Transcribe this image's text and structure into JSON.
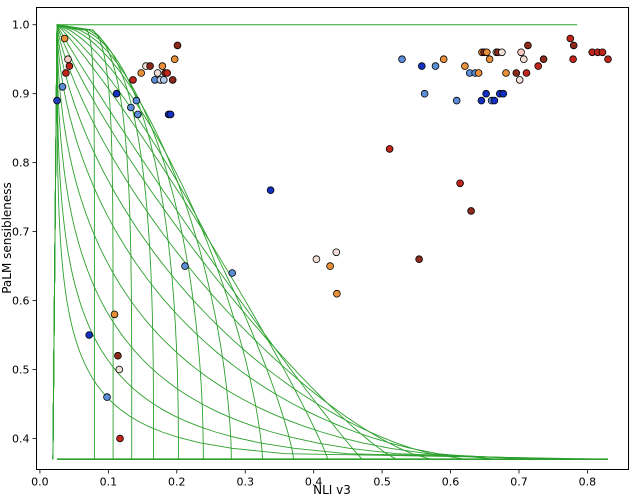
{
  "chart_data": {
    "type": "scatter",
    "title": "",
    "xlabel": "NLI v3",
    "ylabel": "PaLM sensibleness",
    "xlim": [
      -0.005,
      0.86
    ],
    "ylim": [
      0.355,
      1.025
    ],
    "xticks": [
      "0.0",
      "0.1",
      "0.2",
      "0.3",
      "0.4",
      "0.5",
      "0.6",
      "0.7",
      "0.8"
    ],
    "xtick_values": [
      0.0,
      0.1,
      0.2,
      0.3,
      0.4,
      0.5,
      0.6,
      0.7,
      0.8
    ],
    "yticks": [
      "0.4",
      "0.5",
      "0.6",
      "0.7",
      "0.8",
      "0.9",
      "1.0"
    ],
    "ytick_values": [
      0.4,
      0.5,
      0.6,
      0.7,
      0.8,
      0.9,
      1.0
    ],
    "grid": false,
    "legend": "none",
    "frontier_color": "#2ca02c",
    "frontier": {
      "x_min": 0.025,
      "x_max": 0.83,
      "y_min": 0.37,
      "y_max": 1.0,
      "exponents": [
        10,
        6,
        4,
        3,
        2.4,
        2.0,
        1.7,
        1.45,
        1.25,
        1.1,
        0.95,
        0.85,
        0.75,
        0.66,
        0.58,
        0.5,
        0.43,
        0.37,
        0.32
      ],
      "x_scale": [
        1.0,
        1.0,
        1.0,
        1.0,
        1.0,
        1.0,
        1.0,
        1.0,
        1.0,
        1.0,
        1.0,
        1.0,
        1.0,
        1.0,
        1.0,
        1.0,
        1.0,
        1.0,
        1.0
      ],
      "note_levels": [
        0.06,
        0.09,
        0.12,
        0.155,
        0.195,
        0.235,
        0.28,
        0.33,
        0.38,
        0.435,
        0.49,
        0.545,
        0.6,
        0.655,
        0.705,
        0.755,
        0.8,
        0.845,
        0.885
      ]
    },
    "points": [
      {
        "x": 0.025,
        "y": 0.89,
        "color": "#1f3fbf"
      },
      {
        "x": 0.033,
        "y": 0.91,
        "color": "#5b8ed6"
      },
      {
        "x": 0.036,
        "y": 0.98,
        "color": "#e8903a"
      },
      {
        "x": 0.038,
        "y": 0.93,
        "color": "#c0251b"
      },
      {
        "x": 0.041,
        "y": 0.95,
        "color": "#f6c9c0"
      },
      {
        "x": 0.043,
        "y": 0.94,
        "color": "#c0251b"
      },
      {
        "x": 0.072,
        "y": 0.55,
        "color": "#1330c0"
      },
      {
        "x": 0.098,
        "y": 0.46,
        "color": "#5b8ed6"
      },
      {
        "x": 0.109,
        "y": 0.58,
        "color": "#e8903a"
      },
      {
        "x": 0.112,
        "y": 0.9,
        "color": "#1330c0"
      },
      {
        "x": 0.114,
        "y": 0.52,
        "color": "#8b2a1a"
      },
      {
        "x": 0.116,
        "y": 0.5,
        "color": "#f2e0d8"
      },
      {
        "x": 0.117,
        "y": 0.4,
        "color": "#c0251b"
      },
      {
        "x": 0.133,
        "y": 0.88,
        "color": "#5b8ed6"
      },
      {
        "x": 0.136,
        "y": 0.92,
        "color": "#c0251b"
      },
      {
        "x": 0.141,
        "y": 0.89,
        "color": "#5b8ed6"
      },
      {
        "x": 0.143,
        "y": 0.87,
        "color": "#5b8ed6"
      },
      {
        "x": 0.148,
        "y": 0.93,
        "color": "#e8903a"
      },
      {
        "x": 0.155,
        "y": 0.94,
        "color": "#f2e0d8"
      },
      {
        "x": 0.161,
        "y": 0.94,
        "color": "#8b2a1a"
      },
      {
        "x": 0.168,
        "y": 0.92,
        "color": "#5b8ed6"
      },
      {
        "x": 0.172,
        "y": 0.93,
        "color": "#f2e0d8"
      },
      {
        "x": 0.176,
        "y": 0.92,
        "color": "#c8d8ee"
      },
      {
        "x": 0.179,
        "y": 0.94,
        "color": "#e8903a"
      },
      {
        "x": 0.181,
        "y": 0.92,
        "color": "#b2cbe8"
      },
      {
        "x": 0.183,
        "y": 0.93,
        "color": "#8b2a1a"
      },
      {
        "x": 0.186,
        "y": 0.93,
        "color": "#c0251b"
      },
      {
        "x": 0.188,
        "y": 0.87,
        "color": "#1330c0"
      },
      {
        "x": 0.191,
        "y": 0.87,
        "color": "#1330c0"
      },
      {
        "x": 0.194,
        "y": 0.92,
        "color": "#8b2a1a"
      },
      {
        "x": 0.197,
        "y": 0.95,
        "color": "#e8903a"
      },
      {
        "x": 0.201,
        "y": 0.97,
        "color": "#8b2a1a"
      },
      {
        "x": 0.212,
        "y": 0.65,
        "color": "#5b8ed6"
      },
      {
        "x": 0.281,
        "y": 0.64,
        "color": "#5b8ed6"
      },
      {
        "x": 0.337,
        "y": 0.76,
        "color": "#1330c0"
      },
      {
        "x": 0.404,
        "y": 0.66,
        "color": "#f2e0d8"
      },
      {
        "x": 0.424,
        "y": 0.65,
        "color": "#e8903a"
      },
      {
        "x": 0.433,
        "y": 0.67,
        "color": "#f2e0d8"
      },
      {
        "x": 0.434,
        "y": 0.61,
        "color": "#e8903a"
      },
      {
        "x": 0.511,
        "y": 0.82,
        "color": "#c0251b"
      },
      {
        "x": 0.529,
        "y": 0.95,
        "color": "#5b8ed6"
      },
      {
        "x": 0.554,
        "y": 0.66,
        "color": "#8b2a1a"
      },
      {
        "x": 0.562,
        "y": 0.9,
        "color": "#5b8ed6"
      },
      {
        "x": 0.558,
        "y": 0.94,
        "color": "#1330c0"
      },
      {
        "x": 0.578,
        "y": 0.94,
        "color": "#5b8ed6"
      },
      {
        "x": 0.59,
        "y": 0.95,
        "color": "#e8903a"
      },
      {
        "x": 0.609,
        "y": 0.89,
        "color": "#5b8ed6"
      },
      {
        "x": 0.614,
        "y": 0.77,
        "color": "#c0251b"
      },
      {
        "x": 0.621,
        "y": 0.94,
        "color": "#e8903a"
      },
      {
        "x": 0.628,
        "y": 0.93,
        "color": "#5b8ed6"
      },
      {
        "x": 0.63,
        "y": 0.73,
        "color": "#8b2a1a"
      },
      {
        "x": 0.636,
        "y": 0.93,
        "color": "#5b8ed6"
      },
      {
        "x": 0.641,
        "y": 0.93,
        "color": "#e8903a"
      },
      {
        "x": 0.645,
        "y": 0.89,
        "color": "#1330c0"
      },
      {
        "x": 0.646,
        "y": 0.96,
        "color": "#e8903a"
      },
      {
        "x": 0.649,
        "y": 0.96,
        "color": "#8b2a1a"
      },
      {
        "x": 0.652,
        "y": 0.9,
        "color": "#1330c0"
      },
      {
        "x": 0.653,
        "y": 0.96,
        "color": "#e8903a"
      },
      {
        "x": 0.657,
        "y": 0.95,
        "color": "#e8903a"
      },
      {
        "x": 0.66,
        "y": 0.89,
        "color": "#5b8ed6"
      },
      {
        "x": 0.664,
        "y": 0.89,
        "color": "#1330c0"
      },
      {
        "x": 0.667,
        "y": 0.96,
        "color": "#f2e0d8"
      },
      {
        "x": 0.669,
        "y": 0.96,
        "color": "#8b2a1a"
      },
      {
        "x": 0.672,
        "y": 0.9,
        "color": "#1330c0"
      },
      {
        "x": 0.675,
        "y": 0.96,
        "color": "#f2e0d8"
      },
      {
        "x": 0.677,
        "y": 0.9,
        "color": "#1330c0"
      },
      {
        "x": 0.681,
        "y": 0.93,
        "color": "#e8903a"
      },
      {
        "x": 0.696,
        "y": 0.93,
        "color": "#8b2a1a"
      },
      {
        "x": 0.701,
        "y": 0.92,
        "color": "#f2e0d8"
      },
      {
        "x": 0.703,
        "y": 0.96,
        "color": "#f6c9c0"
      },
      {
        "x": 0.707,
        "y": 0.95,
        "color": "#f2e0d8"
      },
      {
        "x": 0.711,
        "y": 0.93,
        "color": "#c0251b"
      },
      {
        "x": 0.713,
        "y": 0.97,
        "color": "#8b2a1a"
      },
      {
        "x": 0.728,
        "y": 0.94,
        "color": "#c0251b"
      },
      {
        "x": 0.736,
        "y": 0.95,
        "color": "#8b2a1a"
      },
      {
        "x": 0.775,
        "y": 0.98,
        "color": "#c0251b"
      },
      {
        "x": 0.78,
        "y": 0.97,
        "color": "#8b2a1a"
      },
      {
        "x": 0.779,
        "y": 0.95,
        "color": "#c0251b"
      },
      {
        "x": 0.807,
        "y": 0.96,
        "color": "#c0251b"
      },
      {
        "x": 0.815,
        "y": 0.96,
        "color": "#c0251b"
      },
      {
        "x": 0.822,
        "y": 0.96,
        "color": "#c0251b"
      },
      {
        "x": 0.83,
        "y": 0.95,
        "color": "#c0251b"
      }
    ]
  }
}
